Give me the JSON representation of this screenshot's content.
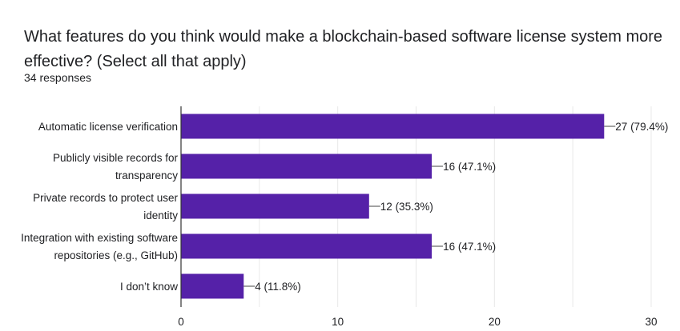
{
  "header": {
    "title": "What features do you think would make a blockchain-based software license system more effective? (Select all that apply)",
    "responses": "34 responses"
  },
  "colors": {
    "bar": "#5521A8",
    "grid": "#e8e8e8",
    "axis": "#333333"
  },
  "chart_data": {
    "type": "bar",
    "orientation": "horizontal",
    "title": "What features do you think would make a blockchain-based software license system more effective? (Select all that apply)",
    "categories": [
      "Automatic license verification",
      "Publicly visible records for transparency",
      "Private records to protect user identity",
      "Integration with existing software repositories (e.g., GitHub)",
      "I don’t know"
    ],
    "category_lines": [
      [
        "Automatic license verification"
      ],
      [
        "Publicly visible records for",
        "transparency"
      ],
      [
        "Private records to protect user",
        "identity"
      ],
      [
        "Integration with existing software",
        "repositories (e.g., GitHub)"
      ],
      [
        "I don’t know"
      ]
    ],
    "values": [
      27,
      16,
      12,
      16,
      4
    ],
    "data_labels": [
      "27 (79.4%)",
      "16 (47.1%)",
      "12 (35.3%)",
      "16 (47.1%)",
      "4 (11.8%)"
    ],
    "xlim": [
      0,
      30
    ],
    "xticks": [
      0,
      10,
      20,
      30
    ],
    "xtick_labels": [
      "0",
      "10",
      "20",
      "30"
    ],
    "grid": true
  }
}
